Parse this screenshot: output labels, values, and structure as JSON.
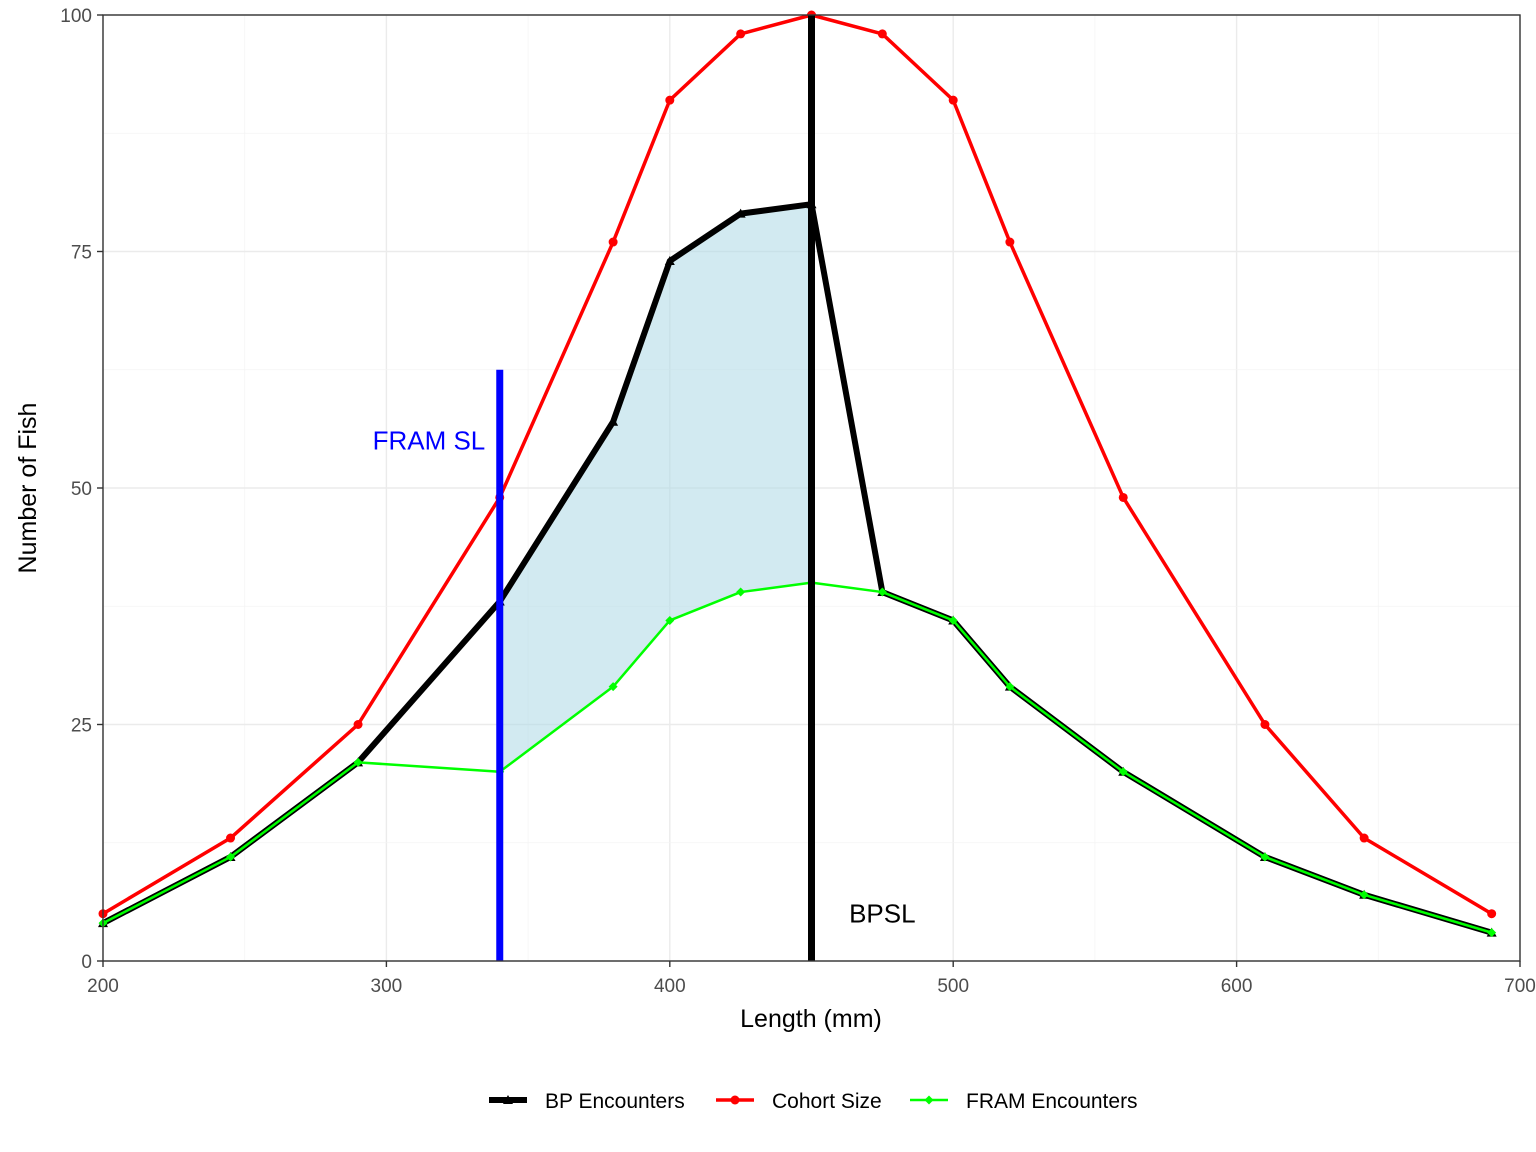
{
  "chart_data": {
    "type": "line",
    "xlabel": "Length (mm)",
    "ylabel": "Number of Fish",
    "xlim": [
      200,
      700
    ],
    "ylim": [
      0,
      100
    ],
    "x_ticks": [
      200,
      300,
      400,
      500,
      600,
      700
    ],
    "y_ticks": [
      0,
      25,
      50,
      75,
      100
    ],
    "grid": true,
    "legend_position": "bottom",
    "series": [
      {
        "name": "BP Encounters",
        "color": "#000000",
        "marker": "triangle",
        "x": [
          200,
          245,
          290,
          340,
          380,
          400,
          425,
          450,
          475,
          500,
          520,
          560,
          610,
          645,
          690
        ],
        "y": [
          4,
          11,
          21,
          38,
          57,
          74,
          79,
          80,
          39,
          36,
          29,
          20,
          11,
          7,
          3
        ]
      },
      {
        "name": "Cohort Size",
        "color": "#ff0000",
        "marker": "circle",
        "x": [
          200,
          245,
          290,
          340,
          380,
          400,
          425,
          450,
          475,
          500,
          520,
          560,
          610,
          645,
          690
        ],
        "y": [
          5,
          13,
          25,
          49,
          76,
          91,
          98,
          100,
          98,
          91,
          76,
          49,
          25,
          13,
          5
        ]
      },
      {
        "name": "FRAM Encounters",
        "color": "#00ff00",
        "marker": "diamond",
        "x": [
          200,
          245,
          290,
          340,
          380,
          400,
          425,
          450,
          475,
          500,
          520,
          560,
          610,
          645,
          690
        ],
        "y": [
          4,
          11,
          21,
          20,
          29,
          36,
          39,
          40,
          39,
          36,
          29,
          20,
          11,
          7,
          3
        ]
      }
    ],
    "shaded_region": {
      "x": [
        340,
        380,
        400,
        425,
        450
      ],
      "upper": [
        38,
        57,
        74,
        79,
        80
      ],
      "lower": [
        20,
        29,
        36,
        39,
        40
      ],
      "fill": "#add8e6"
    },
    "vlines": [
      {
        "x": 340,
        "ymax": 62.5,
        "color": "#0000ff",
        "label": "FRAM SL"
      },
      {
        "x": 450,
        "ymax": 100,
        "color": "#000000",
        "label": "BPSL"
      }
    ],
    "annotations": [
      {
        "text": "FRAM SL",
        "x": 315,
        "y": 55,
        "color": "#0000ff"
      },
      {
        "text": "BPSL",
        "x": 475,
        "y": 5,
        "color": "#000000"
      }
    ]
  }
}
